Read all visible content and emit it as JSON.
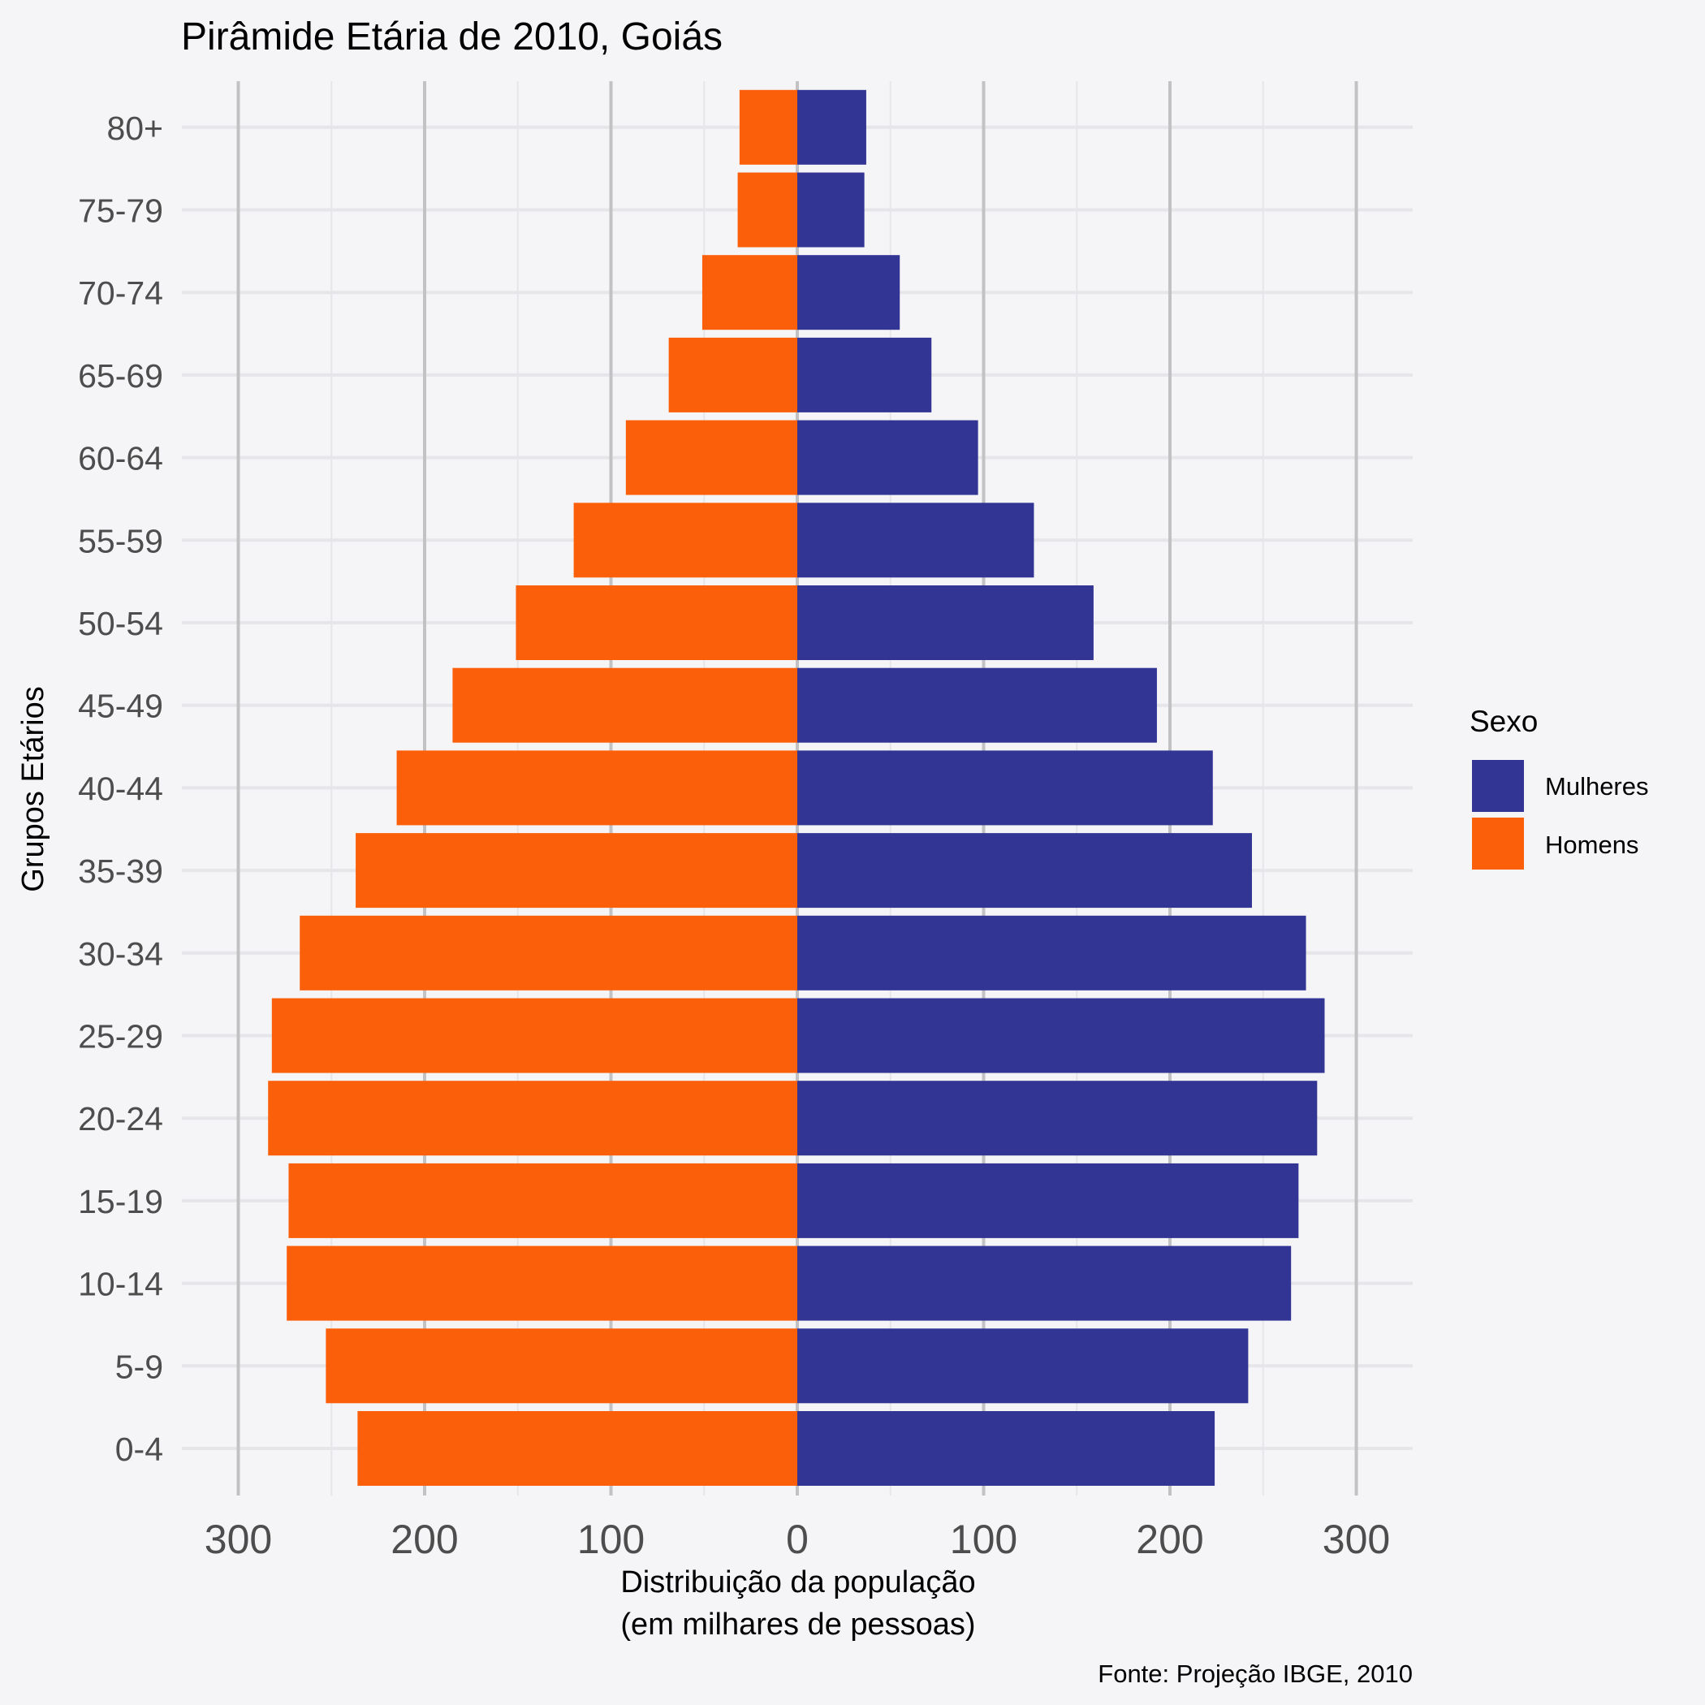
{
  "chart_data": {
    "type": "bar",
    "orientation": "horizontal",
    "title": "Pirâmide Etária de 2010, Goiás",
    "xlabel_line1": "Distribuição da população",
    "xlabel_line2": "(em milhares de pessoas)",
    "ylabel": "Grupos Etários",
    "caption": "Fonte: Projeção IBGE, 2010",
    "xlim": [
      -300,
      300
    ],
    "xticks": [
      -300,
      -200,
      -100,
      0,
      100,
      200,
      300
    ],
    "xtick_labels": [
      "300",
      "200",
      "100",
      "0",
      "100",
      "200",
      "300"
    ],
    "categories": [
      "0-4",
      "5-9",
      "10-14",
      "15-19",
      "20-24",
      "25-29",
      "30-34",
      "35-39",
      "40-44",
      "45-49",
      "50-54",
      "55-59",
      "60-64",
      "65-69",
      "70-74",
      "75-79",
      "80+"
    ],
    "legend": {
      "title": "Sexo",
      "position": "right"
    },
    "series": [
      {
        "name": "Mulheres",
        "color": "#333595",
        "values": [
          224,
          242,
          265,
          269,
          279,
          283,
          273,
          244,
          223,
          193,
          159,
          127,
          97,
          72,
          55,
          36,
          37
        ]
      },
      {
        "name": "Homens",
        "color": "#fc5f09",
        "values": [
          236,
          253,
          274,
          273,
          284,
          282,
          267,
          237,
          215,
          185,
          151,
          120,
          92,
          69,
          51,
          32,
          31
        ]
      }
    ]
  }
}
